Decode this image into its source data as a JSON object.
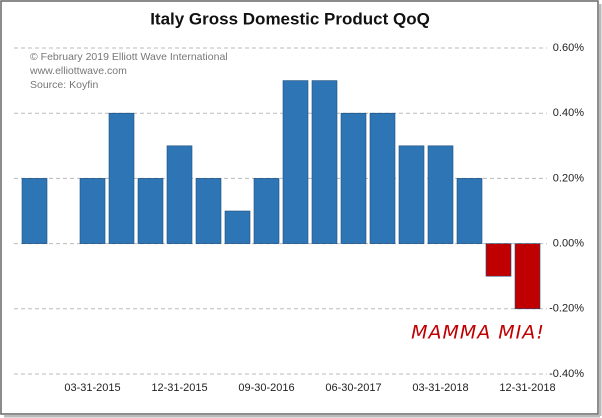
{
  "chart_data": {
    "type": "bar",
    "title": "Italy Gross Domestic Product QoQ",
    "notes": [
      "© February 2019 Elliott  Wave International",
      "www.elliottwave.com",
      "Source: Koyfin"
    ],
    "annotation": "MAMMA MIA!",
    "categories": [
      null,
      null,
      "03-31-2015",
      null,
      null,
      "12-31-2015",
      null,
      null,
      "09-30-2016",
      null,
      null,
      "06-30-2017",
      null,
      null,
      "03-31-2018",
      null,
      null,
      "12-31-2018"
    ],
    "values": [
      0.2,
      0,
      0.2,
      0.4,
      0.2,
      0.3,
      0.2,
      0.1,
      0.2,
      0.5,
      0.5,
      0.4,
      0.4,
      0.3,
      0.3,
      0.2,
      -0.1,
      -0.2
    ],
    "color": "#2e75b6",
    "negative_color": "#c00000",
    "ylim": [
      -0.4,
      0.6
    ],
    "yticks": [
      {
        "value": -0.4,
        "label": "-0.40%"
      },
      {
        "value": -0.2,
        "label": "-0.20%"
      },
      {
        "value": 0,
        "label": "0.00%"
      },
      {
        "value": 0.2,
        "label": "0.20%"
      },
      {
        "value": 0.4,
        "label": "0.40%"
      },
      {
        "value": 0.6,
        "label": "0.60%"
      }
    ],
    "grid": true,
    "y_axis_side": "right"
  }
}
